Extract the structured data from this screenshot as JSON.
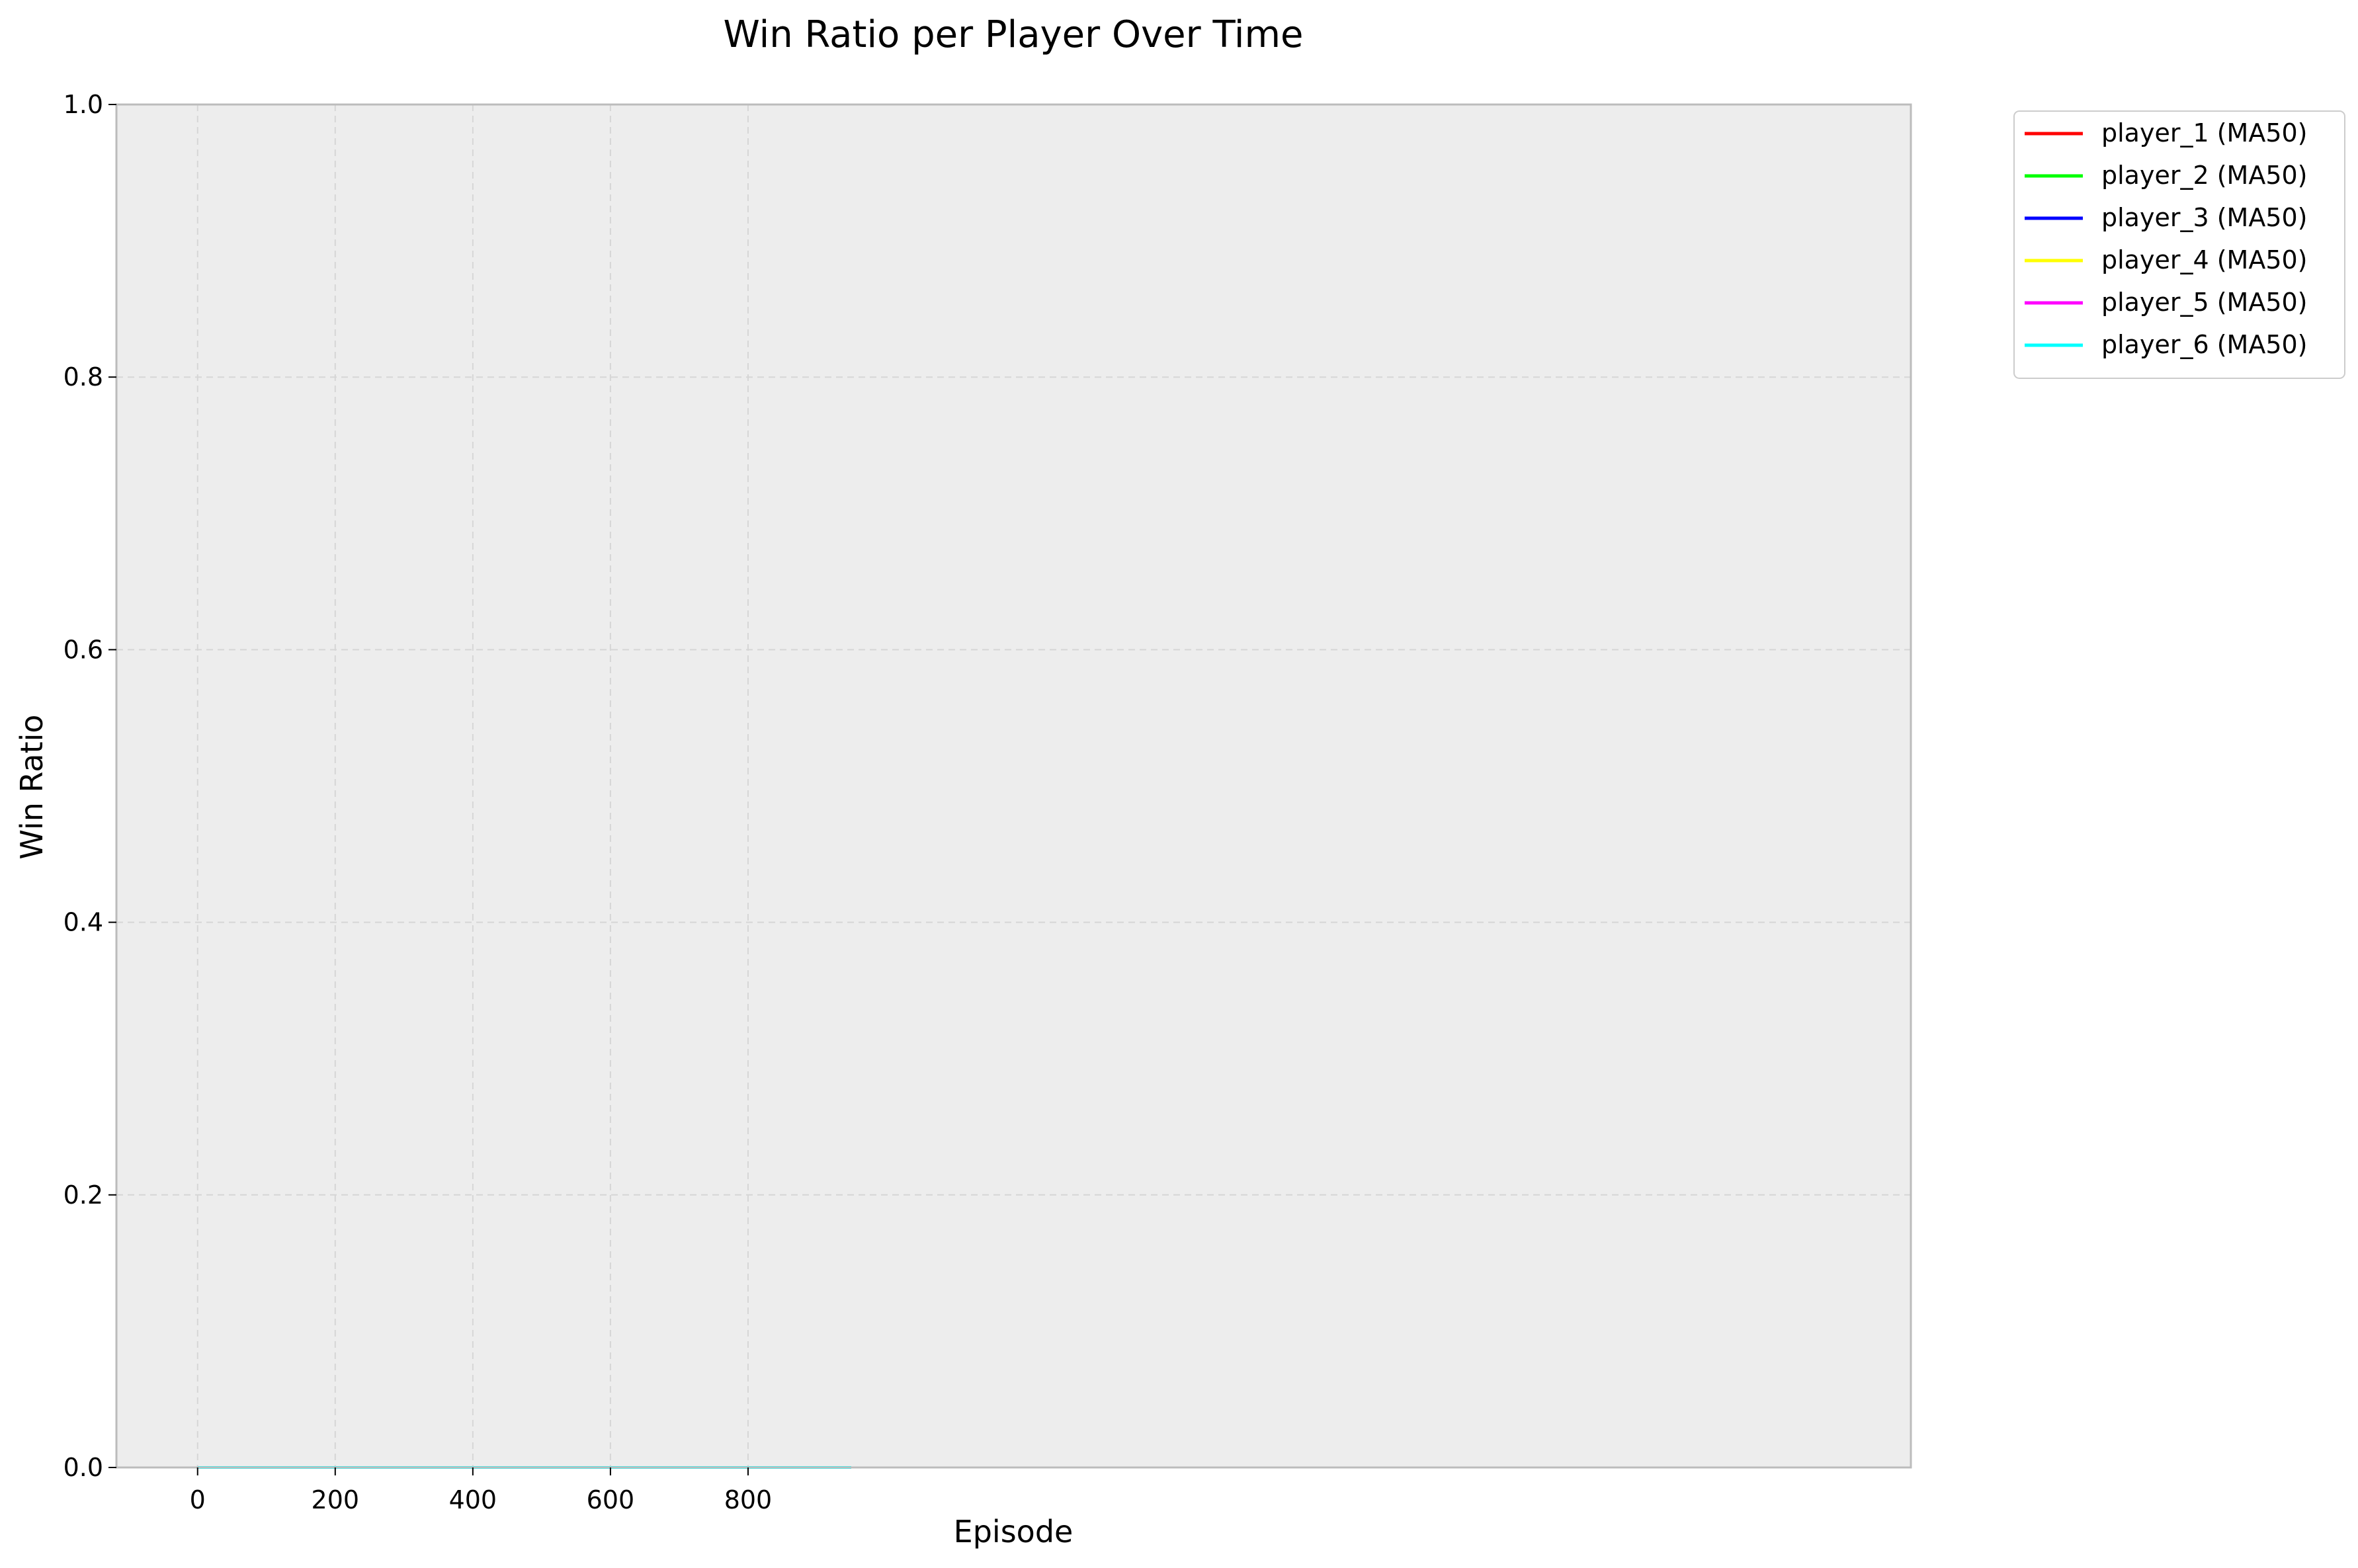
{
  "chart_data": {
    "type": "line",
    "title": "Win Ratio per Player Over Time",
    "xlabel": "Episode",
    "ylabel": "Win Ratio",
    "xlim": [
      -118,
      2490
    ],
    "ylim": [
      0.0,
      1.0
    ],
    "xticks": [
      0,
      200,
      400,
      600,
      800
    ],
    "yticks": [
      0.0,
      0.2,
      0.4,
      0.6,
      0.8,
      1.0
    ],
    "xtick_labels": [
      "0",
      "200",
      "400",
      "600",
      "800"
    ],
    "ytick_labels": [
      "0.0",
      "0.2",
      "0.4",
      "0.6",
      "0.8",
      "1.0"
    ],
    "grid": true,
    "grid_style": "dashed",
    "background_color": "#ededed",
    "legend_position": "outside-top-right",
    "x": [
      0,
      950
    ],
    "series": [
      {
        "name": "player_1 (MA50)",
        "color": "#ff0000",
        "values": [
          0,
          0
        ]
      },
      {
        "name": "player_2 (MA50)",
        "color": "#00ff00",
        "values": [
          0,
          0
        ]
      },
      {
        "name": "player_3 (MA50)",
        "color": "#0000ff",
        "values": [
          0,
          0
        ]
      },
      {
        "name": "player_4 (MA50)",
        "color": "#ffff00",
        "values": [
          0,
          0
        ]
      },
      {
        "name": "player_5 (MA50)",
        "color": "#ff00ff",
        "values": [
          0,
          0
        ]
      },
      {
        "name": "player_6 (MA50)",
        "color": "#00ffff",
        "values": [
          0,
          0
        ]
      }
    ]
  }
}
